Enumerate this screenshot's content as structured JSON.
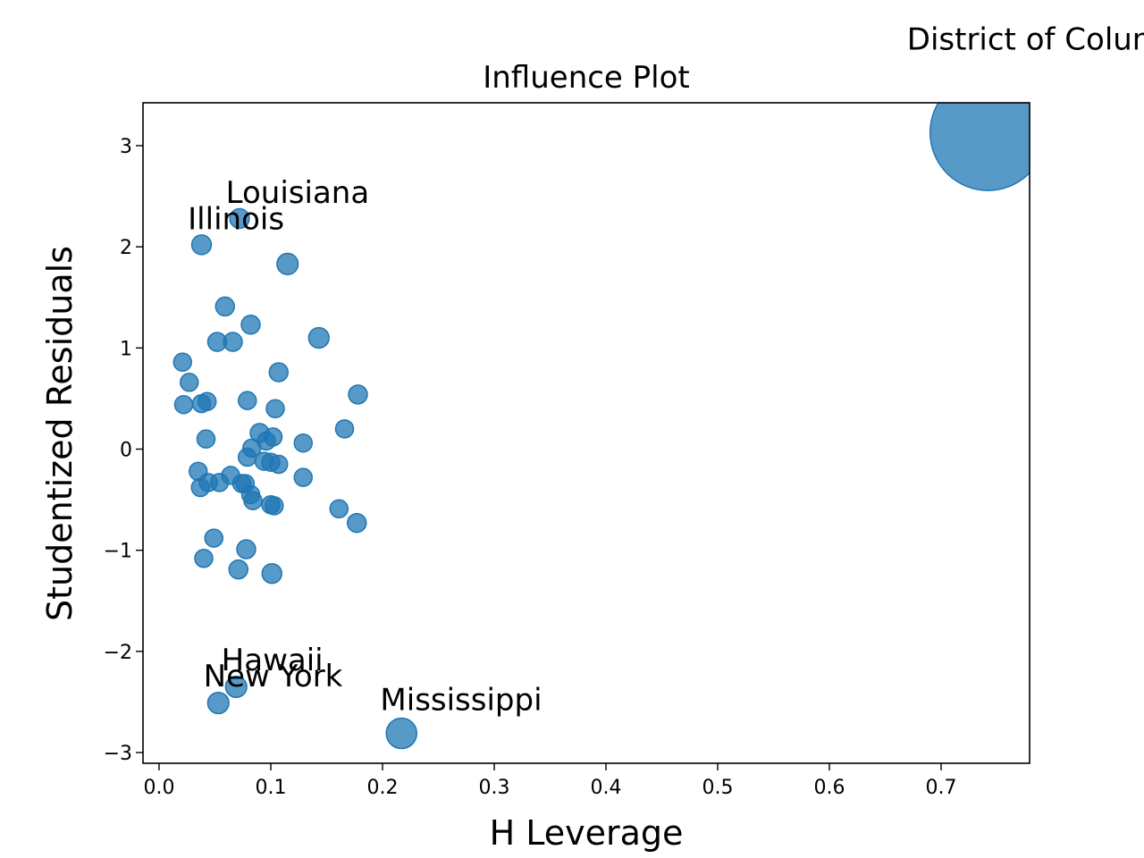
{
  "chart_data": {
    "type": "scatter",
    "title": "Influence Plot",
    "x_label": "H Leverage",
    "y_label": "Studentized Residuals",
    "color": "#1f77b4",
    "xlim": [
      -0.0144,
      0.7792
    ],
    "ylim": [
      -3.106,
      3.424
    ],
    "xticks": [
      {
        "value": 0,
        "label": "0.0"
      },
      0.1,
      0.2,
      0.3,
      0.4,
      0.5,
      0.6,
      0.7
    ],
    "yticks": [
      {
        "value": -3,
        "label": "−3"
      },
      {
        "value": -2,
        "label": "−2"
      },
      {
        "value": -1,
        "label": "−1"
      },
      0,
      1,
      2,
      3
    ],
    "x": [
      0.742,
      0.072,
      0.038,
      0.115,
      0.059,
      0.082,
      0.052,
      0.066,
      0.143,
      0.021,
      0.107,
      0.027,
      0.178,
      0.022,
      0.038,
      0.043,
      0.079,
      0.104,
      0.166,
      0.042,
      0.09,
      0.096,
      0.102,
      0.129,
      0.083,
      0.079,
      0.094,
      0.1,
      0.107,
      0.035,
      0.064,
      0.129,
      0.037,
      0.044,
      0.054,
      0.074,
      0.077,
      0.082,
      0.084,
      0.1,
      0.103,
      0.161,
      0.177,
      0.049,
      0.078,
      0.04,
      0.071,
      0.101,
      0.069,
      0.053,
      0.217
    ],
    "y": [
      3.13,
      2.28,
      2.02,
      1.83,
      1.41,
      1.23,
      1.06,
      1.06,
      1.1,
      0.86,
      0.76,
      0.66,
      0.54,
      0.44,
      0.45,
      0.47,
      0.48,
      0.4,
      0.2,
      0.1,
      0.16,
      0.08,
      0.12,
      0.06,
      0.01,
      -0.08,
      -0.12,
      -0.13,
      -0.15,
      -0.22,
      -0.26,
      -0.28,
      -0.38,
      -0.33,
      -0.33,
      -0.34,
      -0.34,
      -0.45,
      -0.51,
      -0.55,
      -0.56,
      -0.59,
      -0.73,
      -0.88,
      -0.99,
      -1.08,
      -1.19,
      -1.23,
      -2.35,
      -2.51,
      -2.81
    ],
    "sizes": [
      42,
      1.2,
      1.2,
      1.4,
      1.1,
      1.1,
      1.1,
      1.1,
      1.3,
      1,
      1.1,
      1,
      1.1,
      1,
      1,
      1,
      1,
      1,
      1,
      1,
      1.1,
      1,
      1,
      1,
      1,
      1,
      1,
      1,
      1,
      1,
      1,
      1,
      1,
      1,
      1,
      1,
      1,
      1,
      1,
      1,
      1,
      1,
      1.1,
      1,
      1.1,
      1,
      1.1,
      1.2,
      1.4,
      1.4,
      2.9
    ],
    "labels": [
      "District of Columbia",
      "Louisiana",
      "Illinois",
      null,
      null,
      null,
      null,
      null,
      null,
      null,
      null,
      null,
      null,
      null,
      null,
      null,
      null,
      null,
      null,
      null,
      null,
      null,
      null,
      null,
      null,
      null,
      null,
      null,
      null,
      null,
      null,
      null,
      null,
      null,
      null,
      null,
      null,
      null,
      null,
      null,
      null,
      null,
      null,
      null,
      null,
      null,
      null,
      null,
      "Hawaii",
      "New York",
      "Mississippi"
    ]
  }
}
